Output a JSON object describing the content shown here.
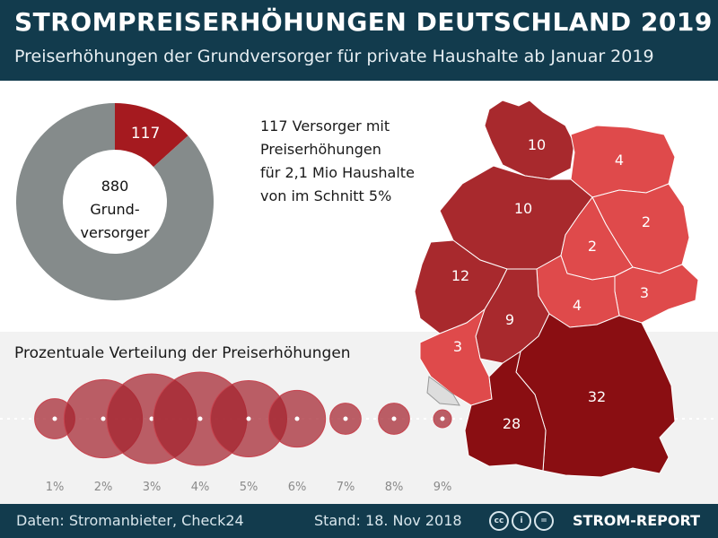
{
  "header": {
    "title": "STROMPREISERHÖHUNGEN DEUTSCHLAND 2019",
    "subtitle": "Preiserhöhungen der Grundversorger für private Haushalte ab Januar 2019"
  },
  "colors": {
    "header_bg": "#123b4d",
    "donut_grey": "#858b8b",
    "donut_red": "#a51a1f",
    "bubble": "#a3222e",
    "map_light": "#df4a4b",
    "map_mid": "#a8292d",
    "map_dark": "#8a0e12",
    "map_grey": "#dddddd"
  },
  "info": {
    "lines": [
      "117 Versorger mit",
      "Preiserhöhungen",
      "für 2,1 Mio Haushalte",
      "von im Schnitt 5%"
    ]
  },
  "chart_data": [
    {
      "type": "pie",
      "donut": true,
      "slices": [
        {
          "label": "117",
          "value": 117,
          "color": "#a51a1f"
        },
        {
          "label": "",
          "value": 763,
          "color": "#858b8b"
        }
      ],
      "center_lines": [
        "880",
        "Grund-",
        "versorger"
      ]
    },
    {
      "type": "scatter",
      "title": "Prozentuale Verteilung der Preiserhöhungen",
      "categories": [
        "1%",
        "2%",
        "3%",
        "4%",
        "5%",
        "6%",
        "7%",
        "8%",
        "9%"
      ],
      "values": [
        5,
        19,
        25,
        27,
        18,
        10,
        3,
        3,
        1
      ]
    }
  ],
  "map": {
    "regions": [
      {
        "id": "nord",
        "value": "10",
        "shade": "mid"
      },
      {
        "id": "nordost",
        "value": "4",
        "shade": "light"
      },
      {
        "id": "nordwest",
        "value": "10",
        "shade": "mid"
      },
      {
        "id": "ost",
        "value": "2",
        "shade": "light"
      },
      {
        "id": "mitte-ost",
        "value": "2",
        "shade": "light"
      },
      {
        "id": "west",
        "value": "12",
        "shade": "mid"
      },
      {
        "id": "sachsen",
        "value": "3",
        "shade": "light"
      },
      {
        "id": "thueringen",
        "value": "4",
        "shade": "light"
      },
      {
        "id": "hessen",
        "value": "9",
        "shade": "mid"
      },
      {
        "id": "rheinland",
        "value": "3",
        "shade": "light"
      },
      {
        "id": "bayern",
        "value": "32",
        "shade": "dark"
      },
      {
        "id": "baden",
        "value": "28",
        "shade": "dark"
      }
    ]
  },
  "footer": {
    "source": "Daten:  Stromanbieter, Check24",
    "date": "Stand: 18. Nov 2018",
    "brand": "STROM-REPORT",
    "cc_icons": [
      "cc-icon",
      "by-icon",
      "nd-icon"
    ]
  }
}
